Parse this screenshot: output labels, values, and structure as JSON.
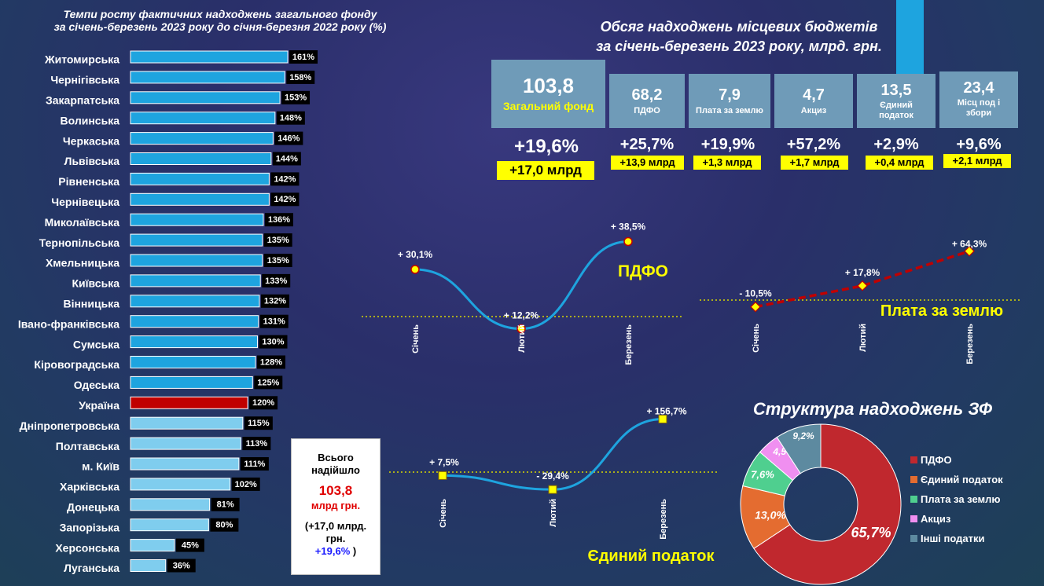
{
  "bar_title": [
    "Темпи росту фактичних надходжень загального фонду",
    "за січень-березень 2023 року до січня-березня 2022 року (%)"
  ],
  "volume_title": [
    "Обсяг надходжень місцевих бюджетів",
    "за січень-березень 2023 року, млрд. грн."
  ],
  "tiles": [
    {
      "value": "103,8",
      "label": "Загальний фонд",
      "growth": "+19,6%",
      "mlrd": "+17,0 млрд"
    },
    {
      "value": "68,2",
      "label": "ПДФО",
      "growth": "+25,7%",
      "mlrd": "+13,9 млрд"
    },
    {
      "value": "7,9",
      "label": "Плата за землю",
      "growth": "+19,9%",
      "mlrd": "+1,3 млрд"
    },
    {
      "value": "4,7",
      "label": "Акциз",
      "growth": "+57,2%",
      "mlrd": "+1,7 млрд"
    },
    {
      "value": "13,5",
      "label": "Єдиний податок",
      "growth": "+2,9%",
      "mlrd": "+0,4 млрд"
    },
    {
      "value": "23,4",
      "label": "Місц под і збори",
      "growth": "+9,6%",
      "mlrd": "+2,1 млрд"
    }
  ],
  "total_box": {
    "l1": "Всього",
    "l2": "надійшло",
    "value": "103,8",
    "unit": "млрд грн.",
    "delta1": "(+17,0 млрд.",
    "delta2": "грн.",
    "pct": "+19,6%",
    "close": " )"
  },
  "colors": {
    "bar": "#1ea4df",
    "bar_light": "#7fcdee",
    "bar_highlight": "#c00000",
    "tile": "#6f9bb8",
    "yellow": "#ffff00",
    "line_blue": "#1ea4df",
    "line_red": "#c00000"
  },
  "chart_data": [
    {
      "type": "bar",
      "orientation": "horizontal",
      "categories": [
        "Житомирська",
        "Чернігівська",
        "Закарпатська",
        "Волинська",
        "Черкаська",
        "Львівська",
        "Рівненська",
        "Чернівецька",
        "Миколаївська",
        "Тернопільська",
        "Хмельницька",
        "Київська",
        "Вінницька",
        "Івано-франківська",
        "Сумська",
        "Кіровоградська",
        "Одеська",
        "Україна",
        "Дніпропетровська",
        "Полтавська",
        "м. Київ",
        "Харківська",
        "Донецька",
        "Запорізька",
        "Херсонська",
        "Луганська"
      ],
      "values": [
        161,
        158,
        153,
        148,
        146,
        144,
        142,
        142,
        136,
        135,
        135,
        133,
        132,
        131,
        130,
        128,
        125,
        120,
        115,
        113,
        111,
        102,
        81,
        80,
        45,
        36
      ],
      "labels": [
        "161%",
        "158%",
        "153%",
        "148%",
        "146%",
        "144%",
        "142%",
        "142%",
        "136%",
        "135%",
        "135%",
        "133%",
        "132%",
        "131%",
        "130%",
        "128%",
        "125%",
        "120%",
        "115%",
        "113%",
        "111%",
        "102%",
        "81%",
        "80%",
        "45%",
        "36%"
      ],
      "highlight": "Україна"
    },
    {
      "type": "line",
      "x": [
        "Січень",
        "Лютий",
        "Березень"
      ],
      "values": [
        30.1,
        12.2,
        38.5
      ],
      "labels": [
        "+ 30,1%",
        "+ 12,2%",
        "+ 38,5%"
      ],
      "name": "ПДФО"
    },
    {
      "type": "line",
      "x": [
        "Січень",
        "Лютий",
        "Березень"
      ],
      "values": [
        -10.5,
        17.8,
        64.3
      ],
      "labels": [
        "- 10,5%",
        "+ 17,8%",
        "+ 64,3%"
      ],
      "name": "Плата за землю"
    },
    {
      "type": "line",
      "x": [
        "Січень",
        "Лютий",
        "Березень"
      ],
      "values": [
        7.5,
        -29.4,
        156.7
      ],
      "labels": [
        "+ 7,5%",
        "- 29,4%",
        "+ 156,7%"
      ],
      "name": "Єдиний податок"
    },
    {
      "type": "pie",
      "donut": true,
      "title": "Структура надходжень ЗФ",
      "categories": [
        "ПДФО",
        "Єдиний податок",
        "Плата за землю",
        "Акциз",
        "Інші податки"
      ],
      "values": [
        65.7,
        13.0,
        7.6,
        4.5,
        9.2
      ],
      "labels": [
        "65,7%",
        "13,0%",
        "7,6%",
        "4,5%",
        "9,2%"
      ],
      "colors": [
        "#c0282e",
        "#e46c30",
        "#4fcf8f",
        "#f08ff0",
        "#5d8aa0"
      ],
      "legend": "right"
    }
  ]
}
